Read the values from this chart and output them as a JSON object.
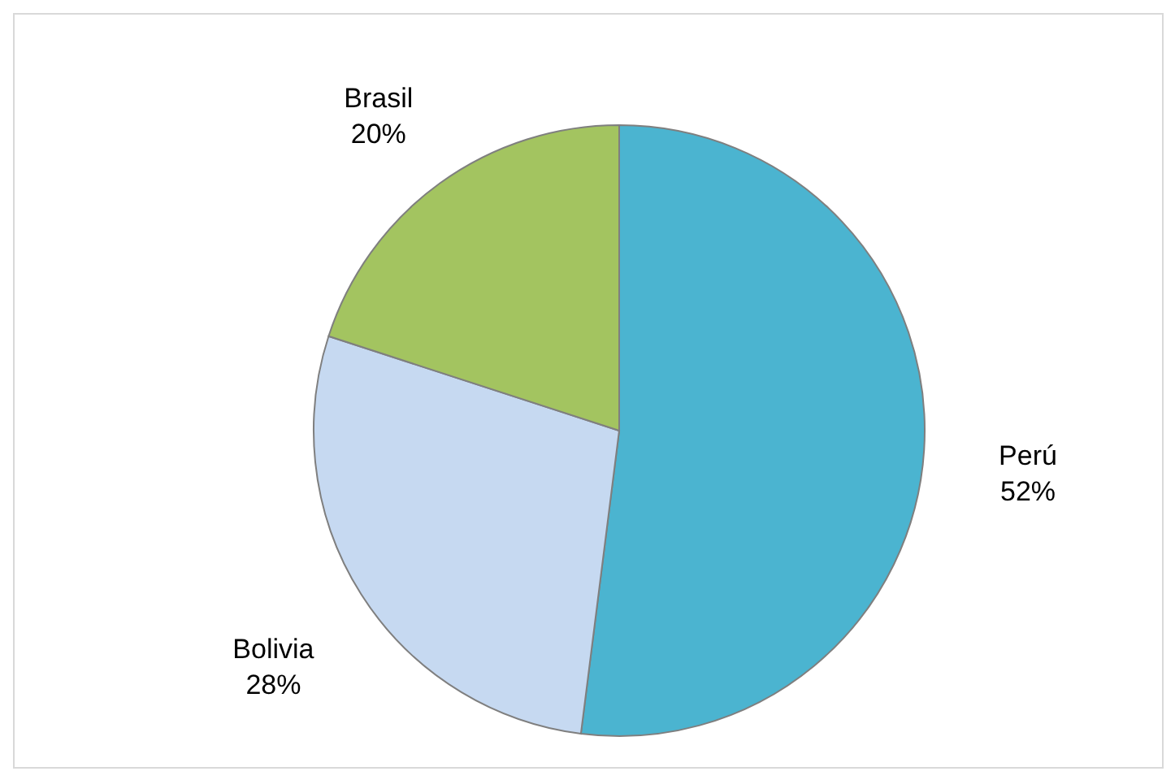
{
  "chart_data": {
    "type": "pie",
    "categories": [
      "Perú",
      "Bolivia",
      "Brasil"
    ],
    "values": [
      52,
      28,
      20
    ],
    "value_labels": [
      "52%",
      "28%",
      "20%"
    ],
    "colors": [
      "#4bb4d0",
      "#c6d9f1",
      "#a3c460"
    ]
  }
}
